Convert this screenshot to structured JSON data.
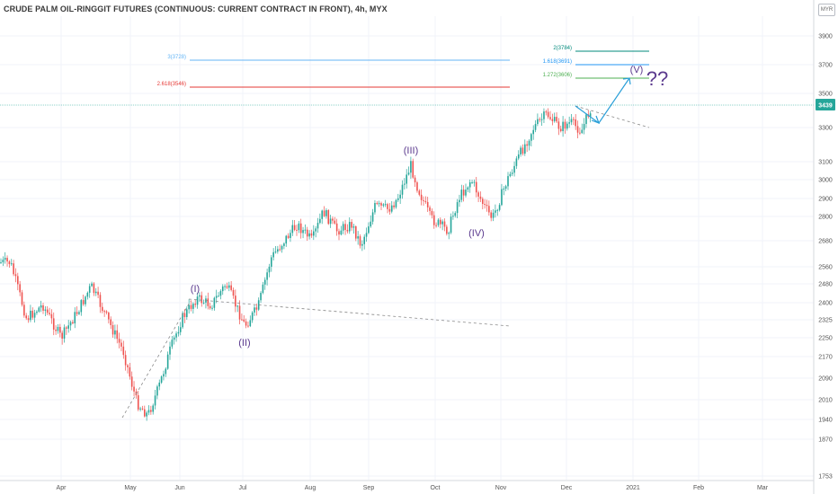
{
  "title": "CRUDE PALM OIL-RINGGIT FUTURES (CONTINUOUS: CURRENT CONTRACT IN FRONT), 4h, MYX",
  "currency_badge": "MYR",
  "colors": {
    "up": "#26a69a",
    "down": "#ef5350",
    "grid": "#f0f3fa",
    "axis_text": "#555555",
    "last_price_bg": "#26a69a",
    "wave_label": "#5b3a8e",
    "projection_arrow": "#2a9fd8",
    "fib_1272": "#4caf50",
    "fib_1618": "#2196f3",
    "fib_2": "#00897b",
    "fib_2618": "#e53935",
    "fib_3": "#64b5f6"
  },
  "chart_data": {
    "type": "candlestick",
    "title": "CRUDE PALM OIL-RINGGIT FUTURES (CONTINUOUS: CURRENT CONTRACT IN FRONT), 4h, MYX",
    "x_tick_labels": [
      "Apr",
      "May",
      "Jun",
      "Jul",
      "Aug",
      "Sep",
      "Oct",
      "Nov",
      "Dec",
      "2021",
      "Feb",
      "Mar"
    ],
    "y_tick_labels": [
      "3900",
      "3700",
      "3500",
      "3300",
      "3100",
      "3000",
      "2900",
      "2800",
      "2680",
      "2560",
      "2480",
      "2400",
      "2325",
      "2250",
      "2170",
      "2090",
      "2010",
      "1940",
      "1870",
      "1753"
    ],
    "last_price": "3439",
    "grid": true,
    "wave_labels": [
      "(I)",
      "(II)",
      "(III)",
      "(IV)",
      "(V)",
      "??"
    ],
    "fib_levels": [
      {
        "label": "1.272(3606)",
        "value": 3606
      },
      {
        "label": "1.618(3691)",
        "value": 3691
      },
      {
        "label": "2(3784)",
        "value": 3784
      },
      {
        "label": "2.618(3546)",
        "value": 3546
      },
      {
        "label": "3(3728)",
        "value": 3728
      }
    ],
    "price_path": [
      {
        "date": "2020-03-10",
        "price": 2580
      },
      {
        "date": "2020-03-17",
        "price": 2330
      },
      {
        "date": "2020-03-24",
        "price": 2390
      },
      {
        "date": "2020-04-01",
        "price": 2250
      },
      {
        "date": "2020-04-08",
        "price": 2360
      },
      {
        "date": "2020-04-14",
        "price": 2470
      },
      {
        "date": "2020-04-21",
        "price": 2330
      },
      {
        "date": "2020-04-28",
        "price": 2190
      },
      {
        "date": "2020-05-05",
        "price": 2000
      },
      {
        "date": "2020-05-12",
        "price": 1955
      },
      {
        "date": "2020-05-19",
        "price": 2060
      },
      {
        "date": "2020-05-26",
        "price": 2200
      },
      {
        "date": "2020-06-02",
        "price": 2330
      },
      {
        "date": "2020-06-09",
        "price": 2420
      },
      {
        "date": "2020-06-16",
        "price": 2390
      },
      {
        "date": "2020-06-23",
        "price": 2480
      },
      {
        "date": "2020-07-02",
        "price": 2300
      },
      {
        "date": "2020-07-08",
        "price": 2380
      },
      {
        "date": "2020-07-14",
        "price": 2600
      },
      {
        "date": "2020-07-20",
        "price": 2680
      },
      {
        "date": "2020-07-26",
        "price": 2760
      },
      {
        "date": "2020-08-02",
        "price": 2680
      },
      {
        "date": "2020-08-08",
        "price": 2830
      },
      {
        "date": "2020-08-15",
        "price": 2730
      },
      {
        "date": "2020-08-23",
        "price": 2760
      },
      {
        "date": "2020-08-28",
        "price": 2660
      },
      {
        "date": "2020-09-04",
        "price": 2860
      },
      {
        "date": "2020-09-10",
        "price": 2840
      },
      {
        "date": "2020-09-14",
        "price": 2900
      },
      {
        "date": "2020-09-20",
        "price": 3080
      },
      {
        "date": "2020-09-23",
        "price": 2960
      },
      {
        "date": "2020-09-29",
        "price": 2790
      },
      {
        "date": "2020-10-07",
        "price": 2730
      },
      {
        "date": "2020-10-12",
        "price": 2900
      },
      {
        "date": "2020-10-18",
        "price": 3000
      },
      {
        "date": "2020-10-24",
        "price": 2860
      },
      {
        "date": "2020-10-28",
        "price": 2790
      },
      {
        "date": "2020-11-04",
        "price": 3000
      },
      {
        "date": "2020-11-10",
        "price": 3150
      },
      {
        "date": "2020-11-16",
        "price": 3300
      },
      {
        "date": "2020-11-22",
        "price": 3380
      },
      {
        "date": "2020-11-28",
        "price": 3300
      },
      {
        "date": "2020-12-03",
        "price": 3330
      },
      {
        "date": "2020-12-08",
        "price": 3280
      },
      {
        "date": "2020-12-13",
        "price": 3439
      }
    ]
  }
}
